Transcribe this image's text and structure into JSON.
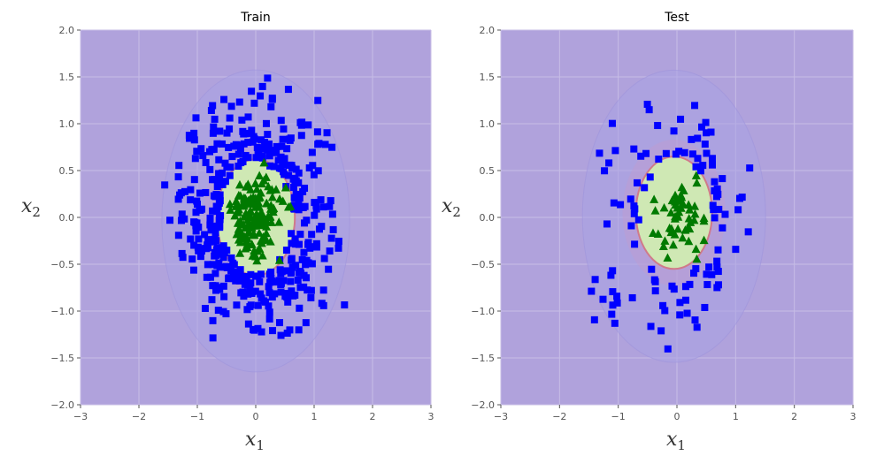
{
  "chart_data": [
    {
      "type": "scatter",
      "title": "Train",
      "xlabel": "x1",
      "ylabel": "x2",
      "xlim": [
        -3,
        3
      ],
      "ylim": [
        -2,
        2
      ],
      "xticks": [
        -3,
        -2,
        -1,
        0,
        1,
        2,
        3
      ],
      "yticks": [
        -2.0,
        -1.5,
        -1.0,
        -0.5,
        0.0,
        0.5,
        1.0,
        1.5,
        2.0
      ],
      "xtick_labels": [
        "−3",
        "−2",
        "−1",
        "0",
        "1",
        "2",
        "3"
      ],
      "ytick_labels": [
        "−2.0",
        "−1.5",
        "−1.0",
        "−0.5",
        "0.0",
        "0.5",
        "1.0",
        "1.5",
        "2.0"
      ],
      "grid": true,
      "background_color": "#b0a2dc",
      "decision_region": {
        "type": "ellipse",
        "center": [
          0.0,
          0.0
        ],
        "radii": [
          0.67,
          0.62
        ],
        "fill": "#cfe8b4",
        "edge": "#d07a8a"
      },
      "series": [
        {
          "marker": "square",
          "color": "#0000ff",
          "count": 420,
          "center": [
            0.0,
            0.0
          ],
          "spread": [
            0.62,
            0.58
          ],
          "min_radius": 0.6,
          "clip": [
            -1.75,
            1.55,
            -1.3,
            1.5
          ]
        },
        {
          "marker": "triangle",
          "color": "#007a00",
          "count": 150,
          "center": [
            0.0,
            0.0
          ],
          "spread": [
            0.22,
            0.2
          ],
          "max_radius": 0.62
        }
      ]
    },
    {
      "type": "scatter",
      "title": "Test",
      "xlabel": "x1",
      "ylabel": "x2",
      "xlim": [
        -3,
        3
      ],
      "ylim": [
        -2,
        2
      ],
      "xticks": [
        -3,
        -2,
        -1,
        0,
        1,
        2,
        3
      ],
      "yticks": [
        -2.0,
        -1.5,
        -1.0,
        -0.5,
        0.0,
        0.5,
        1.0,
        1.5,
        2.0
      ],
      "xtick_labels": [
        "−3",
        "−2",
        "−1",
        "0",
        "1",
        "2",
        "3"
      ],
      "ytick_labels": [
        "−2.0",
        "−1.5",
        "−1.0",
        "−0.5",
        "0.0",
        "0.5",
        "1.0",
        "1.5",
        "2.0"
      ],
      "grid": true,
      "background_color": "#b0a2dc",
      "decision_region": {
        "type": "ellipse",
        "center": [
          -0.05,
          0.05
        ],
        "radii": [
          0.65,
          0.6
        ],
        "fill": "#cfe8b4",
        "edge": "#d07a8a"
      },
      "series": [
        {
          "marker": "square",
          "color": "#0000ff",
          "count": 110,
          "center": [
            0.0,
            0.0
          ],
          "spread": [
            0.65,
            0.58
          ],
          "min_radius": 0.62,
          "clip": [
            -1.55,
            1.35,
            -1.45,
            1.25
          ]
        },
        {
          "marker": "triangle",
          "color": "#007a00",
          "count": 55,
          "center": [
            0.0,
            0.0
          ],
          "spread": [
            0.22,
            0.2
          ],
          "max_radius": 0.58
        }
      ]
    }
  ]
}
